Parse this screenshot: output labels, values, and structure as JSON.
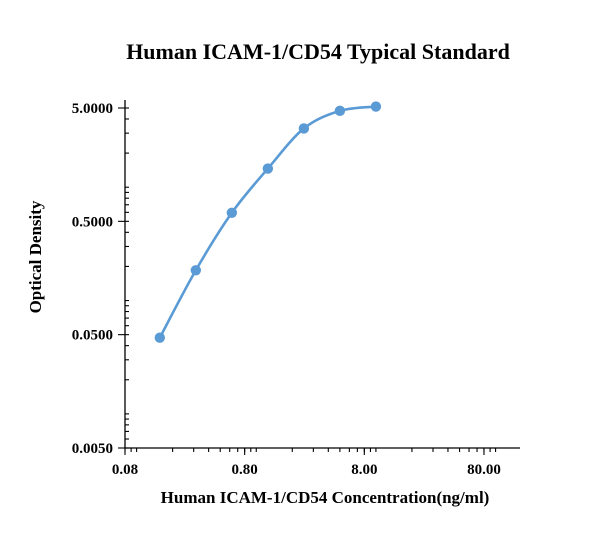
{
  "chart_data": {
    "type": "scatter",
    "title": "Human ICAM-1/CD54 Typical Standard",
    "xlabel": "Human ICAM-1/CD54 Concentration(ng/ml)",
    "ylabel": "Optical Density",
    "x_scale": "log",
    "y_scale": "log",
    "xlim": [
      0.08,
      160
    ],
    "ylim": [
      0.005,
      5
    ],
    "x_ticks": [
      "0.08",
      "0.80",
      "8.00",
      "80.00"
    ],
    "y_ticks": [
      "0.0050",
      "0.0500",
      "0.5000",
      "5.0000"
    ],
    "grid": false,
    "legend": "none",
    "color": "#5b9bd5",
    "series": [
      {
        "x": [
          0.1563,
          0.3125,
          0.625,
          1.25,
          2.5,
          5,
          10
        ],
        "y": [
          0.047,
          0.185,
          0.595,
          1.46,
          3.3,
          4.72,
          5.15
        ]
      }
    ]
  }
}
